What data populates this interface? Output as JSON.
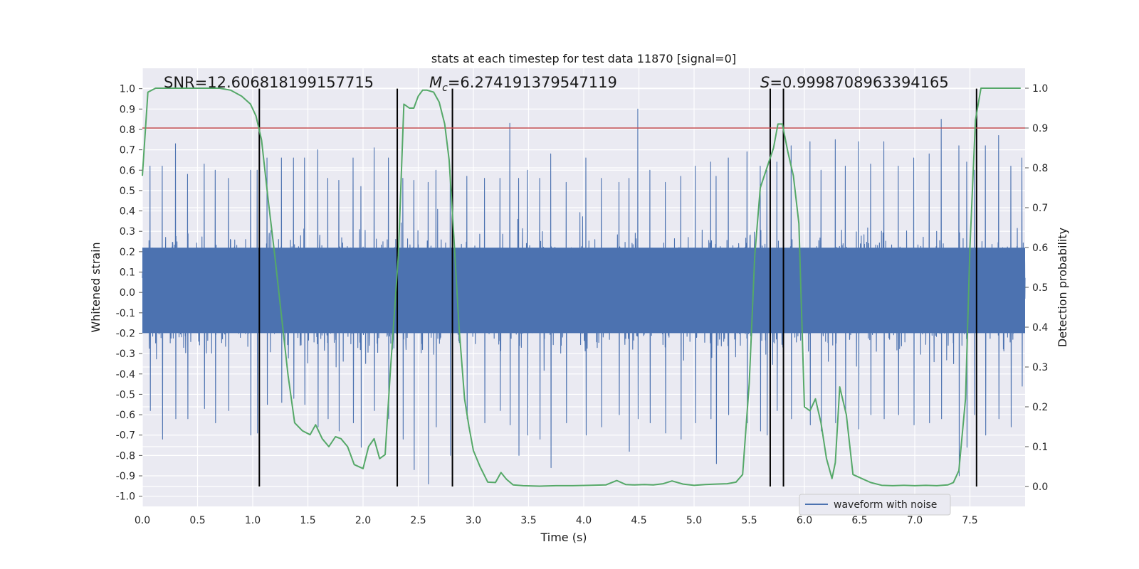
{
  "chart_data": {
    "type": "line",
    "title": "stats at each timestep for test data 11870 [signal=0]",
    "xlabel": "Time (s)",
    "ylabel": "Whitened strain",
    "y2label": "Detection probability",
    "xlim": [
      0,
      8
    ],
    "ylim": [
      -1.05,
      1.1
    ],
    "y2lim": [
      -0.05,
      1.05
    ],
    "x_ticks": [
      "0.0",
      "0.5",
      "1.0",
      "1.5",
      "2.0",
      "2.5",
      "3.0",
      "3.5",
      "4.0",
      "4.5",
      "5.0",
      "5.5",
      "6.0",
      "6.5",
      "7.0",
      "7.5"
    ],
    "y_ticks": [
      "1.0",
      "0.9",
      "0.8",
      "0.7",
      "0.6",
      "0.5",
      "0.4",
      "0.3",
      "0.2",
      "0.1",
      "0.0",
      "-0.1",
      "-0.2",
      "-0.3",
      "-0.4",
      "-0.5",
      "-0.6",
      "-0.7",
      "-0.8",
      "-0.9",
      "-1.0"
    ],
    "y2_ticks": [
      "0.0",
      "0.1",
      "0.2",
      "0.3",
      "0.4",
      "0.5",
      "0.6",
      "0.7",
      "0.8",
      "0.9",
      "1.0"
    ],
    "grid": true,
    "legend": {
      "position": "lower-right",
      "entries": [
        "waveform with noise"
      ]
    },
    "annotations": {
      "snr": "SNR=12.606818199157715",
      "mc_symbol": "M",
      "mc_sub": "c",
      "mc_value": "=6.274191379547119",
      "s_symbol": "S",
      "s_value": "=0.9998708963394165"
    },
    "threshold": {
      "axis": "y2",
      "value": 0.9,
      "color": "#c44e52"
    },
    "vertical_lines": [
      1.06,
      2.31,
      2.81,
      5.69,
      5.81,
      7.56
    ],
    "waveform": {
      "name": "waveform with noise",
      "color": "#4c72b0",
      "core_amplitude": 0.4,
      "peaks": [
        [
          0.07,
          0.62,
          -0.58
        ],
        [
          0.18,
          0.62,
          -0.72
        ],
        [
          0.3,
          0.73,
          -0.62
        ],
        [
          0.41,
          0.58,
          -0.62
        ],
        [
          0.56,
          0.63,
          -0.57
        ],
        [
          0.66,
          0.6,
          -0.64
        ],
        [
          0.78,
          0.56,
          -0.58
        ],
        [
          0.98,
          0.6,
          -0.7
        ],
        [
          1.04,
          0.6,
          -0.69
        ],
        [
          1.13,
          0.66,
          -0.55
        ],
        [
          1.26,
          0.66,
          -0.54
        ],
        [
          1.37,
          0.66,
          -0.52
        ],
        [
          1.47,
          0.66,
          -0.55
        ],
        [
          1.59,
          0.7,
          -0.66
        ],
        [
          1.68,
          0.56,
          -0.62
        ],
        [
          1.78,
          0.55,
          -0.68
        ],
        [
          1.91,
          0.66,
          -0.64
        ],
        [
          1.98,
          0.52,
          -0.76
        ],
        [
          2.1,
          0.71,
          -0.58
        ],
        [
          2.23,
          0.66,
          -0.62
        ],
        [
          2.36,
          0.56,
          -0.72
        ],
        [
          2.46,
          0.55,
          -0.87
        ],
        [
          2.59,
          0.54,
          -0.94
        ],
        [
          2.66,
          0.6,
          -0.66
        ],
        [
          2.79,
          0.6,
          -0.8
        ],
        [
          2.94,
          0.57,
          -0.62
        ],
        [
          3.1,
          0.56,
          -0.64
        ],
        [
          3.24,
          0.56,
          -0.58
        ],
        [
          3.33,
          0.83,
          -0.65
        ],
        [
          3.41,
          0.56,
          -0.8
        ],
        [
          3.49,
          0.6,
          -0.7
        ],
        [
          3.6,
          0.56,
          -0.72
        ],
        [
          3.7,
          0.68,
          -0.86
        ],
        [
          3.84,
          0.54,
          -0.64
        ],
        [
          4.02,
          0.66,
          -0.7
        ],
        [
          4.16,
          0.56,
          -0.66
        ],
        [
          4.32,
          0.54,
          -0.6
        ],
        [
          4.41,
          0.56,
          -0.78
        ],
        [
          4.49,
          0.9,
          -0.62
        ],
        [
          4.6,
          0.6,
          -0.64
        ],
        [
          4.74,
          0.54,
          -0.69
        ],
        [
          4.88,
          0.57,
          -0.72
        ],
        [
          5.01,
          0.62,
          -0.64
        ],
        [
          5.15,
          0.64,
          -0.62
        ],
        [
          5.2,
          0.57,
          -0.84
        ],
        [
          5.31,
          0.66,
          -0.6
        ],
        [
          5.48,
          0.69,
          -0.64
        ],
        [
          5.6,
          0.62,
          -0.68
        ],
        [
          5.66,
          0.6,
          -0.7
        ],
        [
          5.75,
          0.64,
          -0.58
        ],
        [
          5.88,
          0.72,
          -0.62
        ],
        [
          6.05,
          0.74,
          -0.65
        ],
        [
          6.15,
          0.6,
          -0.68
        ],
        [
          6.28,
          0.75,
          -0.64
        ],
        [
          6.37,
          0.62,
          -0.58
        ],
        [
          6.49,
          0.74,
          -0.67
        ],
        [
          6.6,
          0.63,
          -0.6
        ],
        [
          6.72,
          0.74,
          -0.62
        ],
        [
          6.85,
          0.62,
          -0.6
        ],
        [
          6.99,
          0.66,
          -0.65
        ],
        [
          7.13,
          0.68,
          -0.64
        ],
        [
          7.24,
          0.85,
          -0.62
        ],
        [
          7.4,
          0.72,
          -0.9
        ],
        [
          7.47,
          0.64,
          -0.76
        ],
        [
          7.54,
          0.6,
          -0.6
        ],
        [
          7.64,
          0.72,
          -0.7
        ],
        [
          7.76,
          0.77,
          -0.62
        ],
        [
          7.87,
          0.62,
          -0.66
        ],
        [
          7.97,
          0.66,
          -0.46
        ]
      ]
    },
    "probability": {
      "name": "detection probability",
      "color": "#55a868",
      "x": [
        0.0,
        0.05,
        0.12,
        0.2,
        0.3,
        0.4,
        0.5,
        0.6,
        0.7,
        0.8,
        0.9,
        0.98,
        1.03,
        1.08,
        1.14,
        1.2,
        1.26,
        1.32,
        1.38,
        1.45,
        1.52,
        1.57,
        1.63,
        1.69,
        1.75,
        1.8,
        1.86,
        1.92,
        2.0,
        2.05,
        2.1,
        2.15,
        2.2,
        2.25,
        2.32,
        2.37,
        2.42,
        2.46,
        2.5,
        2.54,
        2.58,
        2.64,
        2.69,
        2.74,
        2.78,
        2.82,
        2.87,
        2.92,
        2.96,
        3.0,
        3.06,
        3.13,
        3.2,
        3.25,
        3.3,
        3.36,
        3.45,
        3.6,
        3.75,
        3.9,
        4.05,
        4.2,
        4.3,
        4.38,
        4.46,
        4.55,
        4.63,
        4.72,
        4.8,
        4.9,
        5.0,
        5.1,
        5.2,
        5.3,
        5.38,
        5.44,
        5.5,
        5.55,
        5.6,
        5.66,
        5.72,
        5.76,
        5.8,
        5.85,
        5.9,
        5.95,
        6.0,
        6.05,
        6.1,
        6.15,
        6.2,
        6.25,
        6.28,
        6.32,
        6.38,
        6.44,
        6.52,
        6.6,
        6.7,
        6.8,
        6.9,
        7.0,
        7.1,
        7.2,
        7.3,
        7.35,
        7.4,
        7.46,
        7.5,
        7.55,
        7.6,
        7.64,
        7.7,
        7.8,
        7.9,
        7.96
      ],
      "y": [
        0.78,
        0.99,
        1.0,
        1.0,
        1.0,
        1.0,
        1.0,
        1.0,
        1.0,
        0.995,
        0.98,
        0.96,
        0.93,
        0.87,
        0.72,
        0.58,
        0.43,
        0.28,
        0.16,
        0.14,
        0.13,
        0.155,
        0.12,
        0.1,
        0.125,
        0.12,
        0.1,
        0.055,
        0.045,
        0.1,
        0.12,
        0.07,
        0.08,
        0.3,
        0.58,
        0.96,
        0.95,
        0.95,
        0.98,
        0.995,
        0.995,
        0.99,
        0.965,
        0.91,
        0.82,
        0.64,
        0.4,
        0.22,
        0.15,
        0.09,
        0.05,
        0.011,
        0.01,
        0.035,
        0.018,
        0.004,
        0.002,
        0.001,
        0.002,
        0.002,
        0.003,
        0.004,
        0.015,
        0.005,
        0.004,
        0.005,
        0.004,
        0.007,
        0.014,
        0.006,
        0.003,
        0.005,
        0.006,
        0.007,
        0.011,
        0.03,
        0.26,
        0.58,
        0.75,
        0.8,
        0.85,
        0.91,
        0.91,
        0.84,
        0.78,
        0.66,
        0.2,
        0.19,
        0.22,
        0.16,
        0.07,
        0.02,
        0.06,
        0.25,
        0.18,
        0.03,
        0.02,
        0.01,
        0.003,
        0.002,
        0.003,
        0.002,
        0.003,
        0.002,
        0.004,
        0.01,
        0.04,
        0.22,
        0.6,
        0.92,
        1.0,
        1.0,
        1.0,
        1.0,
        1.0,
        1.0
      ]
    }
  }
}
